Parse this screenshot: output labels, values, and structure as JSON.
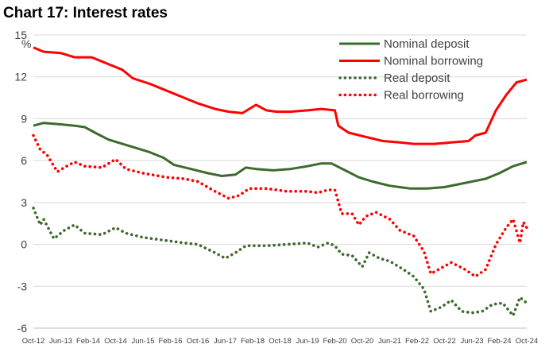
{
  "title": "Chart 17: Interest rates",
  "chart_data": {
    "type": "line",
    "unit_label": "%",
    "ylim": [
      -6,
      15
    ],
    "yticks": [
      "15",
      "12",
      "9",
      "6",
      "3",
      "0",
      "-3",
      "-6"
    ],
    "ytick_values": [
      15,
      12,
      9,
      6,
      3,
      0,
      -3,
      -6
    ],
    "x_range": [
      "2012-10",
      "2024-10"
    ],
    "xticks": [
      "Oct-12",
      "Jun-13",
      "Feb-14",
      "Oct-14",
      "Jun-15",
      "Feb-16",
      "Oct-16",
      "Jun-17",
      "Feb-18",
      "Oct-18",
      "Jun-19",
      "Feb-20",
      "Oct-20",
      "Jun-21",
      "Feb-22",
      "Oct-22",
      "Jun-23",
      "Feb-24",
      "Oct-24"
    ],
    "grid": "horizontal",
    "legend_position": "top-right",
    "series": [
      {
        "name": "Nominal deposit",
        "style": "solid",
        "color": "#3d6b2d",
        "points": [
          [
            "2012-10",
            8.5
          ],
          [
            "2013-01",
            8.7
          ],
          [
            "2013-06",
            8.6
          ],
          [
            "2013-10",
            8.5
          ],
          [
            "2014-01",
            8.4
          ],
          [
            "2014-04",
            8.0
          ],
          [
            "2014-08",
            7.5
          ],
          [
            "2014-12",
            7.2
          ],
          [
            "2015-04",
            6.9
          ],
          [
            "2015-08",
            6.6
          ],
          [
            "2015-12",
            6.2
          ],
          [
            "2016-03",
            5.7
          ],
          [
            "2016-08",
            5.4
          ],
          [
            "2017-01",
            5.1
          ],
          [
            "2017-05",
            4.9
          ],
          [
            "2017-09",
            5.0
          ],
          [
            "2017-12",
            5.5
          ],
          [
            "2018-03",
            5.4
          ],
          [
            "2018-08",
            5.3
          ],
          [
            "2019-01",
            5.4
          ],
          [
            "2019-06",
            5.6
          ],
          [
            "2019-10",
            5.8
          ],
          [
            "2020-01",
            5.8
          ],
          [
            "2020-05",
            5.3
          ],
          [
            "2020-09",
            4.8
          ],
          [
            "2021-01",
            4.5
          ],
          [
            "2021-06",
            4.2
          ],
          [
            "2021-12",
            4.0
          ],
          [
            "2022-05",
            4.0
          ],
          [
            "2022-10",
            4.1
          ],
          [
            "2023-02",
            4.3
          ],
          [
            "2023-06",
            4.5
          ],
          [
            "2023-10",
            4.7
          ],
          [
            "2024-02",
            5.1
          ],
          [
            "2024-06",
            5.6
          ],
          [
            "2024-10",
            5.9
          ]
        ]
      },
      {
        "name": "Nominal borrowing",
        "style": "solid",
        "color": "#ff0000",
        "points": [
          [
            "2012-10",
            14.1
          ],
          [
            "2013-01",
            13.8
          ],
          [
            "2013-06",
            13.7
          ],
          [
            "2013-10",
            13.4
          ],
          [
            "2014-03",
            13.4
          ],
          [
            "2014-08",
            12.9
          ],
          [
            "2014-12",
            12.5
          ],
          [
            "2015-03",
            11.9
          ],
          [
            "2015-08",
            11.5
          ],
          [
            "2016-01",
            11.0
          ],
          [
            "2016-06",
            10.5
          ],
          [
            "2016-10",
            10.1
          ],
          [
            "2017-03",
            9.7
          ],
          [
            "2017-07",
            9.5
          ],
          [
            "2017-11",
            9.4
          ],
          [
            "2018-01",
            9.7
          ],
          [
            "2018-03",
            10.0
          ],
          [
            "2018-06",
            9.6
          ],
          [
            "2018-09",
            9.5
          ],
          [
            "2019-01",
            9.5
          ],
          [
            "2019-06",
            9.6
          ],
          [
            "2019-10",
            9.7
          ],
          [
            "2020-02",
            9.6
          ],
          [
            "2020-03",
            8.5
          ],
          [
            "2020-06",
            8.0
          ],
          [
            "2020-11",
            7.7
          ],
          [
            "2021-04",
            7.4
          ],
          [
            "2021-09",
            7.3
          ],
          [
            "2022-01",
            7.2
          ],
          [
            "2022-07",
            7.2
          ],
          [
            "2022-12",
            7.3
          ],
          [
            "2023-05",
            7.4
          ],
          [
            "2023-07",
            7.8
          ],
          [
            "2023-10",
            8.0
          ],
          [
            "2024-01",
            9.6
          ],
          [
            "2024-04",
            10.7
          ],
          [
            "2024-07",
            11.6
          ],
          [
            "2024-10",
            11.8
          ]
        ]
      },
      {
        "name": "Real deposit",
        "style": "dotted",
        "color": "#3d6b2d",
        "points": [
          [
            "2012-10",
            2.6
          ],
          [
            "2012-12",
            1.4
          ],
          [
            "2013-01",
            1.8
          ],
          [
            "2013-04",
            0.4
          ],
          [
            "2013-07",
            1.0
          ],
          [
            "2013-10",
            1.4
          ],
          [
            "2014-01",
            0.8
          ],
          [
            "2014-06",
            0.7
          ],
          [
            "2014-10",
            1.2
          ],
          [
            "2015-01",
            0.8
          ],
          [
            "2015-06",
            0.5
          ],
          [
            "2015-12",
            0.3
          ],
          [
            "2016-06",
            0.1
          ],
          [
            "2016-10",
            0.0
          ],
          [
            "2017-03",
            -0.6
          ],
          [
            "2017-06",
            -1.0
          ],
          [
            "2017-09",
            -0.6
          ],
          [
            "2017-12",
            -0.1
          ],
          [
            "2018-06",
            -0.1
          ],
          [
            "2018-12",
            0.0
          ],
          [
            "2019-06",
            0.1
          ],
          [
            "2019-09",
            -0.2
          ],
          [
            "2019-12",
            0.1
          ],
          [
            "2020-02",
            -0.1
          ],
          [
            "2020-04",
            -0.7
          ],
          [
            "2020-07",
            -0.8
          ],
          [
            "2020-10",
            -1.6
          ],
          [
            "2020-12",
            -0.6
          ],
          [
            "2021-03",
            -1.0
          ],
          [
            "2021-06",
            -1.2
          ],
          [
            "2021-10",
            -1.8
          ],
          [
            "2022-01",
            -2.3
          ],
          [
            "2022-04",
            -3.2
          ],
          [
            "2022-06",
            -4.8
          ],
          [
            "2022-09",
            -4.5
          ],
          [
            "2022-12",
            -4.0
          ],
          [
            "2023-03",
            -4.8
          ],
          [
            "2023-06",
            -4.9
          ],
          [
            "2023-09",
            -4.8
          ],
          [
            "2023-12",
            -4.3
          ],
          [
            "2024-03",
            -4.2
          ],
          [
            "2024-06",
            -5.1
          ],
          [
            "2024-08",
            -3.8
          ],
          [
            "2024-10",
            -4.2
          ]
        ]
      },
      {
        "name": "Real borrowing",
        "style": "dotted",
        "color": "#ff0000",
        "points": [
          [
            "2012-10",
            7.8
          ],
          [
            "2012-12",
            6.8
          ],
          [
            "2013-02",
            6.4
          ],
          [
            "2013-05",
            5.2
          ],
          [
            "2013-07",
            5.5
          ],
          [
            "2013-10",
            5.9
          ],
          [
            "2014-01",
            5.6
          ],
          [
            "2014-06",
            5.5
          ],
          [
            "2014-10",
            6.1
          ],
          [
            "2015-01",
            5.4
          ],
          [
            "2015-06",
            5.1
          ],
          [
            "2016-01",
            4.8
          ],
          [
            "2016-06",
            4.7
          ],
          [
            "2016-10",
            4.5
          ],
          [
            "2017-03",
            3.8
          ],
          [
            "2017-07",
            3.3
          ],
          [
            "2017-10",
            3.5
          ],
          [
            "2018-01",
            4.0
          ],
          [
            "2018-06",
            4.0
          ],
          [
            "2018-12",
            3.8
          ],
          [
            "2019-06",
            3.8
          ],
          [
            "2019-09",
            3.7
          ],
          [
            "2019-12",
            3.9
          ],
          [
            "2020-02",
            3.9
          ],
          [
            "2020-04",
            2.2
          ],
          [
            "2020-07",
            2.2
          ],
          [
            "2020-09",
            1.4
          ],
          [
            "2020-11",
            2.0
          ],
          [
            "2021-02",
            2.3
          ],
          [
            "2021-06",
            1.8
          ],
          [
            "2021-09",
            1.0
          ],
          [
            "2022-01",
            0.6
          ],
          [
            "2022-04",
            -0.5
          ],
          [
            "2022-06",
            -2.1
          ],
          [
            "2022-09",
            -1.7
          ],
          [
            "2022-12",
            -1.3
          ],
          [
            "2023-04",
            -1.8
          ],
          [
            "2023-07",
            -2.3
          ],
          [
            "2023-10",
            -1.8
          ],
          [
            "2024-01",
            0.0
          ],
          [
            "2024-04",
            1.2
          ],
          [
            "2024-06",
            1.8
          ],
          [
            "2024-08",
            0.1
          ],
          [
            "2024-09",
            1.6
          ],
          [
            "2024-10",
            1.2
          ]
        ]
      }
    ]
  }
}
